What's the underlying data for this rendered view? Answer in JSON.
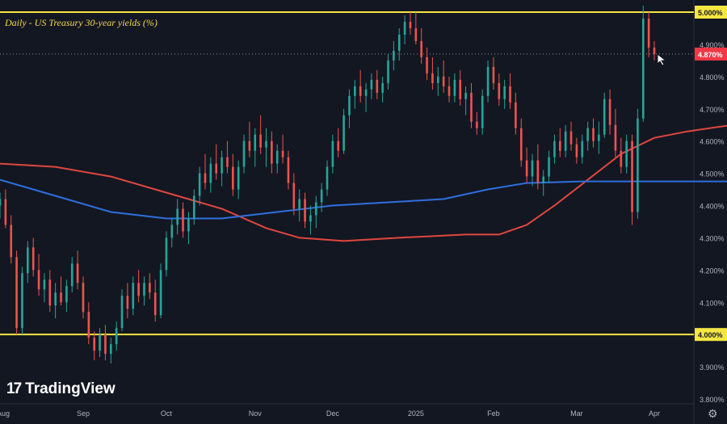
{
  "chart_data": {
    "type": "candlestick",
    "title": "Daily - US Treasury 30-year yields (%)",
    "y_ticks": [
      "3.800%",
      "3.900%",
      "4.000%",
      "4.100%",
      "4.200%",
      "4.300%",
      "4.400%",
      "4.500%",
      "4.600%",
      "4.700%",
      "4.800%",
      "4.900%",
      "5.000%"
    ],
    "ylim": [
      3.76,
      5.03
    ],
    "x_labels": [
      "Aug",
      "Sep",
      "Oct",
      "Nov",
      "Dec",
      "2025",
      "Feb",
      "Mar",
      "Apr"
    ],
    "grid": false,
    "last_value_label": "4.870%",
    "last_value": 4.87,
    "horizontal_levels": [
      {
        "value": 5.0,
        "label": "5.000%",
        "color": "#f5e642"
      },
      {
        "value": 4.0,
        "label": "4.000%",
        "color": "#f5e642"
      }
    ],
    "moving_averages": [
      {
        "color": "#e0473f",
        "points": [
          [
            0,
            4.53
          ],
          [
            10,
            4.52
          ],
          [
            20,
            4.49
          ],
          [
            30,
            4.44
          ],
          [
            40,
            4.39
          ],
          [
            48,
            4.33
          ],
          [
            54,
            4.3
          ],
          [
            62,
            4.29
          ],
          [
            72,
            4.3
          ],
          [
            84,
            4.31
          ],
          [
            90,
            4.31
          ],
          [
            95,
            4.34
          ],
          [
            100,
            4.4
          ],
          [
            106,
            4.48
          ],
          [
            112,
            4.56
          ],
          [
            118,
            4.61
          ],
          [
            124,
            4.63
          ],
          [
            130,
            4.645
          ],
          [
            136,
            4.66
          ],
          [
            140,
            4.67
          ]
        ]
      },
      {
        "color": "#2f6fe0",
        "points": [
          [
            0,
            4.48
          ],
          [
            10,
            4.43
          ],
          [
            20,
            4.38
          ],
          [
            30,
            4.36
          ],
          [
            40,
            4.36
          ],
          [
            50,
            4.38
          ],
          [
            60,
            4.4
          ],
          [
            70,
            4.41
          ],
          [
            80,
            4.42
          ],
          [
            88,
            4.45
          ],
          [
            95,
            4.47
          ],
          [
            105,
            4.475
          ],
          [
            115,
            4.475
          ],
          [
            125,
            4.475
          ],
          [
            133,
            4.475
          ],
          [
            140,
            4.485
          ]
        ]
      }
    ],
    "colors": {
      "up": "#26a69a",
      "down": "#ef5350",
      "background": "#131722",
      "label_bg": "#f23645"
    },
    "ohlc": [
      [
        4.4,
        4.44,
        4.36,
        4.42
      ],
      [
        4.42,
        4.45,
        4.33,
        4.34
      ],
      [
        4.34,
        4.37,
        4.22,
        4.24
      ],
      [
        4.24,
        4.26,
        4.0,
        4.02
      ],
      [
        4.02,
        4.21,
        4.0,
        4.19
      ],
      [
        4.19,
        4.29,
        4.16,
        4.27
      ],
      [
        4.27,
        4.3,
        4.18,
        4.2
      ],
      [
        4.2,
        4.25,
        4.12,
        4.14
      ],
      [
        4.14,
        4.19,
        4.1,
        4.17
      ],
      [
        4.17,
        4.2,
        4.07,
        4.09
      ],
      [
        4.09,
        4.16,
        4.05,
        4.13
      ],
      [
        4.13,
        4.18,
        4.09,
        4.1
      ],
      [
        4.1,
        4.17,
        4.07,
        4.15
      ],
      [
        4.15,
        4.24,
        4.13,
        4.22
      ],
      [
        4.22,
        4.26,
        4.14,
        4.16
      ],
      [
        4.16,
        4.18,
        4.05,
        4.07
      ],
      [
        4.07,
        4.1,
        3.97,
        3.99
      ],
      [
        3.99,
        4.01,
        3.92,
        3.95
      ],
      [
        3.95,
        4.02,
        3.93,
        4.0
      ],
      [
        4.0,
        4.03,
        3.92,
        3.94
      ],
      [
        3.94,
        3.99,
        3.91,
        3.97
      ],
      [
        3.97,
        4.04,
        3.95,
        4.02
      ],
      [
        4.02,
        4.14,
        4.01,
        4.12
      ],
      [
        4.12,
        4.16,
        4.05,
        4.08
      ],
      [
        4.08,
        4.18,
        4.06,
        4.16
      ],
      [
        4.16,
        4.2,
        4.1,
        4.12
      ],
      [
        4.12,
        4.18,
        4.09,
        4.16
      ],
      [
        4.16,
        4.19,
        4.11,
        4.13
      ],
      [
        4.13,
        4.17,
        4.04,
        4.06
      ],
      [
        4.06,
        4.22,
        4.05,
        4.2
      ],
      [
        4.2,
        4.32,
        4.18,
        4.3
      ],
      [
        4.3,
        4.36,
        4.27,
        4.34
      ],
      [
        4.34,
        4.42,
        4.31,
        4.39
      ],
      [
        4.39,
        4.41,
        4.3,
        4.32
      ],
      [
        4.32,
        4.38,
        4.28,
        4.36
      ],
      [
        4.36,
        4.45,
        4.34,
        4.43
      ],
      [
        4.43,
        4.52,
        4.4,
        4.5
      ],
      [
        4.5,
        4.56,
        4.45,
        4.47
      ],
      [
        4.47,
        4.55,
        4.44,
        4.53
      ],
      [
        4.53,
        4.59,
        4.48,
        4.5
      ],
      [
        4.5,
        4.57,
        4.46,
        4.55
      ],
      [
        4.55,
        4.6,
        4.5,
        4.52
      ],
      [
        4.52,
        4.56,
        4.43,
        4.45
      ],
      [
        4.45,
        4.54,
        4.42,
        4.52
      ],
      [
        4.52,
        4.62,
        4.5,
        4.6
      ],
      [
        4.6,
        4.66,
        4.55,
        4.57
      ],
      [
        4.57,
        4.64,
        4.52,
        4.62
      ],
      [
        4.62,
        4.68,
        4.56,
        4.58
      ],
      [
        4.58,
        4.64,
        4.52,
        4.6
      ],
      [
        4.6,
        4.63,
        4.5,
        4.53
      ],
      [
        4.53,
        4.59,
        4.5,
        4.57
      ],
      [
        4.57,
        4.62,
        4.53,
        4.55
      ],
      [
        4.55,
        4.57,
        4.45,
        4.47
      ],
      [
        4.47,
        4.5,
        4.37,
        4.39
      ],
      [
        4.39,
        4.45,
        4.35,
        4.42
      ],
      [
        4.42,
        4.44,
        4.33,
        4.35
      ],
      [
        4.35,
        4.4,
        4.31,
        4.37
      ],
      [
        4.37,
        4.43,
        4.33,
        4.41
      ],
      [
        4.41,
        4.47,
        4.38,
        4.45
      ],
      [
        4.45,
        4.54,
        4.43,
        4.52
      ],
      [
        4.52,
        4.62,
        4.5,
        4.6
      ],
      [
        4.6,
        4.64,
        4.55,
        4.57
      ],
      [
        4.57,
        4.7,
        4.56,
        4.68
      ],
      [
        4.68,
        4.76,
        4.64,
        4.74
      ],
      [
        4.74,
        4.79,
        4.7,
        4.77
      ],
      [
        4.77,
        4.82,
        4.72,
        4.74
      ],
      [
        4.74,
        4.78,
        4.69,
        4.76
      ],
      [
        4.76,
        4.81,
        4.73,
        4.79
      ],
      [
        4.79,
        4.82,
        4.73,
        4.75
      ],
      [
        4.75,
        4.8,
        4.72,
        4.78
      ],
      [
        4.78,
        4.87,
        4.76,
        4.85
      ],
      [
        4.85,
        4.91,
        4.82,
        4.88
      ],
      [
        4.88,
        4.95,
        4.85,
        4.93
      ],
      [
        4.93,
        4.99,
        4.9,
        4.97
      ],
      [
        4.97,
        5.0,
        4.93,
        4.95
      ],
      [
        4.95,
        5.0,
        4.9,
        4.91
      ],
      [
        4.91,
        4.95,
        4.84,
        4.86
      ],
      [
        4.86,
        4.89,
        4.79,
        4.81
      ],
      [
        4.81,
        4.86,
        4.76,
        4.78
      ],
      [
        4.78,
        4.83,
        4.74,
        4.8
      ],
      [
        4.8,
        4.85,
        4.75,
        4.77
      ],
      [
        4.77,
        4.8,
        4.72,
        4.74
      ],
      [
        4.74,
        4.81,
        4.72,
        4.79
      ],
      [
        4.79,
        4.82,
        4.71,
        4.73
      ],
      [
        4.73,
        4.77,
        4.68,
        4.75
      ],
      [
        4.75,
        4.78,
        4.64,
        4.66
      ],
      [
        4.66,
        4.69,
        4.62,
        4.64
      ],
      [
        4.64,
        4.76,
        4.62,
        4.74
      ],
      [
        4.74,
        4.85,
        4.72,
        4.83
      ],
      [
        4.83,
        4.86,
        4.76,
        4.78
      ],
      [
        4.78,
        4.81,
        4.71,
        4.73
      ],
      [
        4.73,
        4.79,
        4.7,
        4.77
      ],
      [
        4.77,
        4.81,
        4.7,
        4.72
      ],
      [
        4.72,
        4.75,
        4.62,
        4.64
      ],
      [
        4.64,
        4.67,
        4.52,
        4.54
      ],
      [
        4.54,
        4.58,
        4.47,
        4.49
      ],
      [
        4.49,
        4.56,
        4.46,
        4.54
      ],
      [
        4.54,
        4.59,
        4.45,
        4.47
      ],
      [
        4.47,
        4.51,
        4.43,
        4.49
      ],
      [
        4.49,
        4.57,
        4.47,
        4.55
      ],
      [
        4.55,
        4.62,
        4.53,
        4.6
      ],
      [
        4.6,
        4.64,
        4.55,
        4.57
      ],
      [
        4.57,
        4.65,
        4.55,
        4.63
      ],
      [
        4.63,
        4.66,
        4.57,
        4.59
      ],
      [
        4.59,
        4.61,
        4.53,
        4.55
      ],
      [
        4.55,
        4.62,
        4.53,
        4.6
      ],
      [
        4.6,
        4.66,
        4.57,
        4.64
      ],
      [
        4.64,
        4.67,
        4.58,
        4.6
      ],
      [
        4.6,
        4.66,
        4.56,
        4.62
      ],
      [
        4.62,
        4.75,
        4.61,
        4.73
      ],
      [
        4.73,
        4.76,
        4.62,
        4.65
      ],
      [
        4.65,
        4.7,
        4.55,
        4.57
      ],
      [
        4.57,
        4.61,
        4.5,
        4.52
      ],
      [
        4.52,
        4.62,
        4.5,
        4.6
      ],
      [
        4.6,
        4.62,
        4.34,
        4.38
      ],
      [
        4.38,
        4.7,
        4.36,
        4.67
      ],
      [
        4.67,
        5.02,
        4.66,
        4.98
      ],
      [
        4.98,
        5.0,
        4.86,
        4.89
      ],
      [
        4.89,
        4.91,
        4.85,
        4.87
      ]
    ]
  }
}
